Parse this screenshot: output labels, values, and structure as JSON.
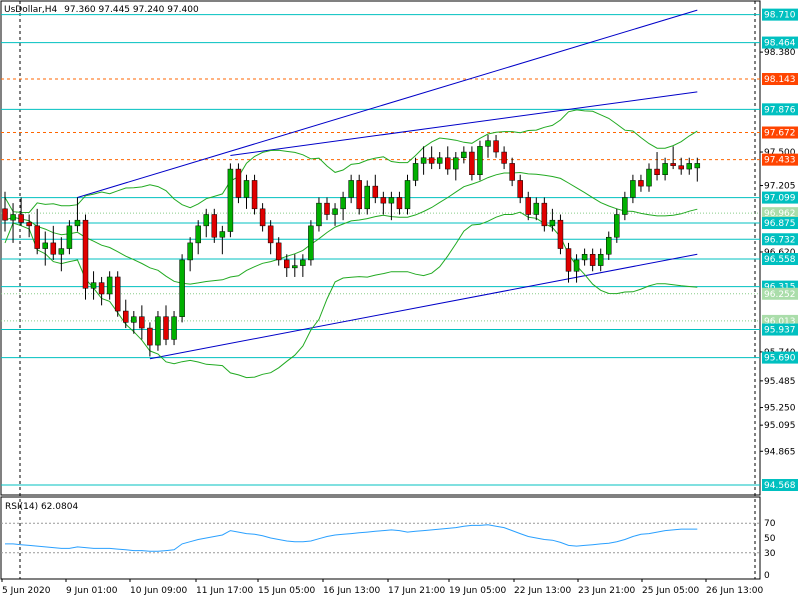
{
  "header": {
    "symbol": "UsDollar,H4",
    "ohlc": "97.360 97.445 97.240 97.400"
  },
  "colors": {
    "background": "#ffffff",
    "grid": "#000000",
    "bull": "#00b000",
    "bear": "#e00000",
    "level": "#00c0c0",
    "resistance": "#ff6600",
    "trendline": "#0000c8",
    "bands": "#22aa22",
    "rsi": "#2aa0ff",
    "highlight_label": "#ff4400"
  },
  "chart_data": [
    {
      "type": "candlestick",
      "title": "UsDollar,H4",
      "ylim": [
        94.48,
        98.83
      ],
      "price_ticks": [
        "98.710",
        "98.464",
        "98.380",
        "98.143",
        "97.876",
        "97.672",
        "97.500",
        "97.433",
        "97.205",
        "97.099",
        "96.962",
        "96.875",
        "96.732",
        "96.620",
        "96.558",
        "96.315",
        "96.252",
        "96.013",
        "95.937",
        "95.740",
        "95.690",
        "95.485",
        "95.250",
        "95.095",
        "94.865",
        "94.568"
      ],
      "x_labels": [
        "5 Jun 2020",
        "9 Jun 01:00",
        "10 Jun 09:00",
        "11 Jun 17:00",
        "15 Jun 05:00",
        "16 Jun 13:00",
        "17 Jun 21:00",
        "19 Jun 05:00",
        "22 Jun 13:00",
        "23 Jun 21:00",
        "25 Jun 05:00",
        "26 Jun 13:00"
      ],
      "current_price": 97.433,
      "levels": [
        {
          "value": 98.71,
          "style": "solid",
          "label": "98.710"
        },
        {
          "value": 98.464,
          "style": "solid",
          "label": "98.464"
        },
        {
          "value": 98.143,
          "style": "dashed",
          "label": "98.143"
        },
        {
          "value": 97.876,
          "style": "solid",
          "label": "97.876"
        },
        {
          "value": 97.672,
          "style": "dashed",
          "label": "97.672"
        },
        {
          "value": 97.433,
          "style": "dashed",
          "label": "97.433"
        },
        {
          "value": 97.099,
          "style": "solid",
          "label": "97.099"
        },
        {
          "value": 96.962,
          "style": "dotted",
          "label": "96.962"
        },
        {
          "value": 96.875,
          "style": "solid",
          "label": "96.875"
        },
        {
          "value": 96.732,
          "style": "solid",
          "label": "96.732"
        },
        {
          "value": 96.558,
          "style": "solid",
          "label": "96.558"
        },
        {
          "value": 96.315,
          "style": "solid",
          "label": "96.315"
        },
        {
          "value": 96.252,
          "style": "dotted",
          "label": "96.252"
        },
        {
          "value": 96.013,
          "style": "dotted",
          "label": "96.013"
        },
        {
          "value": 95.937,
          "style": "solid",
          "label": "95.937"
        },
        {
          "value": 95.69,
          "style": "solid",
          "label": "95.690"
        },
        {
          "value": 94.568,
          "style": "solid",
          "label": "94.568"
        }
      ],
      "series": [
        {
          "values": [
            [
              97.0,
              97.15,
              96.8,
              96.9
            ],
            [
              96.9,
              97.05,
              96.7,
              96.95
            ],
            [
              96.95,
              97.1,
              96.85,
              96.88
            ],
            [
              96.88,
              96.95,
              96.75,
              96.85
            ],
            [
              96.85,
              97.0,
              96.6,
              96.65
            ],
            [
              96.65,
              96.8,
              96.5,
              96.7
            ],
            [
              96.7,
              96.85,
              96.55,
              96.6
            ],
            [
              96.6,
              96.75,
              96.45,
              96.65
            ],
            [
              96.65,
              96.9,
              96.6,
              96.85
            ],
            [
              96.85,
              97.1,
              96.8,
              96.9
            ],
            [
              96.9,
              96.95,
              96.2,
              96.3
            ],
            [
              96.3,
              96.45,
              96.2,
              96.35
            ],
            [
              96.35,
              96.4,
              96.15,
              96.25
            ],
            [
              96.25,
              96.45,
              96.2,
              96.4
            ],
            [
              96.4,
              96.45,
              96.05,
              96.1
            ],
            [
              96.1,
              96.2,
              95.95,
              96.0
            ],
            [
              96.0,
              96.1,
              95.9,
              96.05
            ],
            [
              96.05,
              96.15,
              95.85,
              95.95
            ],
            [
              95.95,
              96.0,
              95.7,
              95.8
            ],
            [
              95.8,
              96.1,
              95.75,
              96.05
            ],
            [
              96.05,
              96.15,
              95.8,
              95.85
            ],
            [
              95.85,
              96.1,
              95.8,
              96.05
            ],
            [
              96.05,
              96.6,
              96.0,
              96.55
            ],
            [
              96.55,
              96.75,
              96.45,
              96.7
            ],
            [
              96.7,
              96.9,
              96.6,
              96.85
            ],
            [
              96.85,
              97.0,
              96.75,
              96.95
            ],
            [
              96.95,
              97.0,
              96.7,
              96.75
            ],
            [
              96.75,
              96.85,
              96.6,
              96.8
            ],
            [
              96.8,
              97.4,
              96.75,
              97.35
            ],
            [
              97.35,
              97.4,
              97.05,
              97.1
            ],
            [
              97.1,
              97.3,
              97.0,
              97.25
            ],
            [
              97.25,
              97.3,
              96.95,
              97.0
            ],
            [
              97.0,
              97.05,
              96.8,
              96.85
            ],
            [
              96.85,
              96.9,
              96.6,
              96.7
            ],
            [
              96.7,
              96.75,
              96.5,
              96.55
            ],
            [
              96.55,
              96.6,
              96.4,
              96.48
            ],
            [
              96.48,
              96.6,
              96.4,
              96.5
            ],
            [
              96.5,
              96.6,
              96.4,
              96.55
            ],
            [
              96.55,
              96.9,
              96.5,
              96.85
            ],
            [
              96.85,
              97.1,
              96.8,
              97.05
            ],
            [
              97.05,
              97.1,
              96.9,
              96.95
            ],
            [
              96.95,
              97.05,
              96.85,
              97.0
            ],
            [
              97.0,
              97.15,
              96.9,
              97.1
            ],
            [
              97.1,
              97.3,
              97.05,
              97.25
            ],
            [
              97.25,
              97.3,
              96.95,
              97.0
            ],
            [
              97.0,
              97.25,
              96.95,
              97.2
            ],
            [
              97.2,
              97.3,
              97.05,
              97.1
            ],
            [
              97.1,
              97.15,
              96.95,
              97.05
            ],
            [
              97.05,
              97.15,
              96.9,
              97.1
            ],
            [
              97.1,
              97.15,
              96.95,
              97.0
            ],
            [
              97.0,
              97.3,
              96.95,
              97.25
            ],
            [
              97.25,
              97.45,
              97.2,
              97.4
            ],
            [
              97.4,
              97.55,
              97.3,
              97.45
            ],
            [
              97.45,
              97.55,
              97.35,
              97.4
            ],
            [
              97.4,
              97.5,
              97.35,
              97.45
            ],
            [
              97.45,
              97.55,
              97.3,
              97.35
            ],
            [
              97.35,
              97.5,
              97.25,
              97.45
            ],
            [
              97.45,
              97.55,
              97.4,
              97.5
            ],
            [
              97.5,
              97.55,
              97.25,
              97.3
            ],
            [
              97.3,
              97.6,
              97.25,
              97.55
            ],
            [
              97.55,
              97.65,
              97.45,
              97.6
            ],
            [
              97.6,
              97.65,
              97.45,
              97.5
            ],
            [
              97.5,
              97.55,
              97.35,
              97.4
            ],
            [
              97.4,
              97.45,
              97.2,
              97.25
            ],
            [
              97.25,
              97.3,
              97.05,
              97.1
            ],
            [
              97.1,
              97.15,
              96.9,
              96.95
            ],
            [
              96.95,
              97.1,
              96.9,
              97.05
            ],
            [
              97.05,
              97.1,
              96.8,
              96.85
            ],
            [
              96.85,
              97.0,
              96.8,
              96.9
            ],
            [
              96.9,
              96.95,
              96.6,
              96.65
            ],
            [
              96.65,
              96.7,
              96.35,
              96.45
            ],
            [
              96.45,
              96.6,
              96.35,
              96.55
            ],
            [
              96.55,
              96.65,
              96.5,
              96.6
            ],
            [
              96.6,
              96.65,
              96.45,
              96.5
            ],
            [
              96.5,
              96.65,
              96.45,
              96.6
            ],
            [
              96.6,
              96.8,
              96.55,
              96.75
            ],
            [
              96.75,
              97.0,
              96.7,
              96.95
            ],
            [
              96.95,
              97.15,
              96.9,
              97.1
            ],
            [
              97.1,
              97.3,
              97.05,
              97.25
            ],
            [
              97.25,
              97.3,
              97.15,
              97.2
            ],
            [
              97.2,
              97.4,
              97.15,
              97.35
            ],
            [
              97.35,
              97.5,
              97.25,
              97.3
            ],
            [
              97.3,
              97.45,
              97.25,
              97.4
            ],
            [
              97.4,
              97.55,
              97.35,
              97.38
            ],
            [
              97.38,
              97.45,
              97.3,
              97.35
            ],
            [
              97.35,
              97.45,
              97.3,
              97.4
            ],
            [
              97.36,
              97.45,
              97.24,
              97.4
            ]
          ]
        }
      ],
      "trendlines": [
        {
          "from": [
            9,
            97.1
          ],
          "to": [
            86,
            98.75
          ]
        },
        {
          "from": [
            28,
            97.47
          ],
          "to": [
            86,
            98.03
          ]
        },
        {
          "from": [
            18,
            95.68
          ],
          "to": [
            86,
            96.6
          ]
        }
      ]
    },
    {
      "type": "line",
      "title": "RSI(14) 62.0804",
      "ylim": [
        0,
        100
      ],
      "yticks": [
        70,
        30
      ],
      "levels": [
        70,
        30
      ],
      "tick_labels": [
        "70",
        "50",
        "30",
        "0"
      ],
      "series": [
        {
          "values": [
            42,
            42,
            41,
            40,
            39,
            38,
            37,
            36,
            36,
            38,
            37,
            36,
            36,
            36,
            35,
            34,
            33,
            33,
            32,
            32,
            33,
            34,
            42,
            45,
            48,
            50,
            52,
            54,
            60,
            58,
            56,
            55,
            53,
            50,
            48,
            46,
            45,
            45,
            46,
            49,
            52,
            54,
            55,
            56,
            57,
            58,
            59,
            60,
            61,
            60,
            58,
            59,
            60,
            61,
            62,
            63,
            64,
            66,
            67,
            67,
            68,
            66,
            64,
            60,
            56,
            52,
            50,
            48,
            47,
            44,
            40,
            39,
            40,
            41,
            42,
            43,
            45,
            48,
            52,
            55,
            56,
            58,
            60,
            61,
            62,
            62,
            62.08
          ]
        }
      ]
    }
  ]
}
